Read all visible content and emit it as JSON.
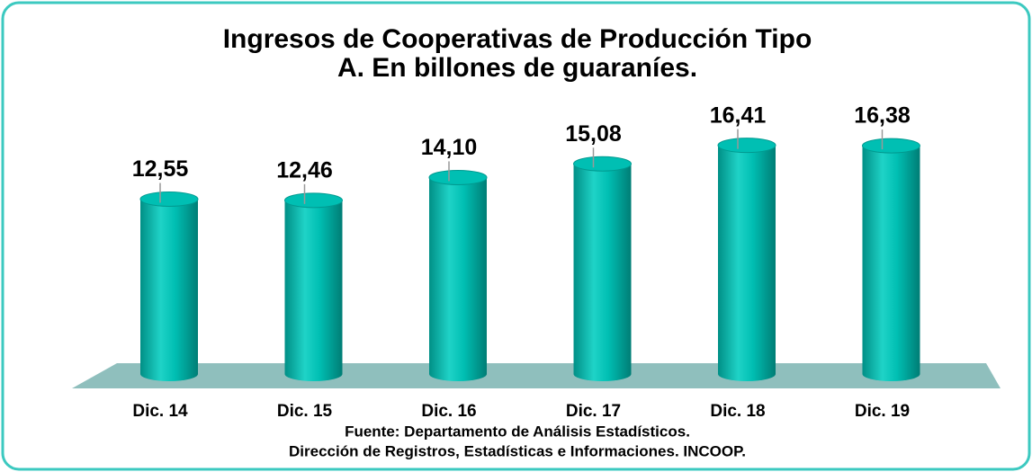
{
  "chart_data": {
    "type": "bar",
    "title": [
      "Ingresos de Cooperativas de Producción Tipo",
      "A. En billones de guaraníes."
    ],
    "categories": [
      "Dic. 14",
      "Dic. 15",
      "Dic. 16",
      "Dic. 17",
      "Dic. 18",
      "Dic. 19"
    ],
    "values": [
      12.55,
      12.46,
      14.1,
      15.08,
      16.41,
      16.38
    ],
    "value_labels": [
      "12,55",
      "12,46",
      "14,10",
      "15,08",
      "16,41",
      "16,38"
    ],
    "color": "#00bfb3",
    "source": [
      "Fuente: Departamento de Análisis Estadísticos.",
      "Dirección de Registros, Estadísticas e Informaciones. INCOOP."
    ]
  }
}
